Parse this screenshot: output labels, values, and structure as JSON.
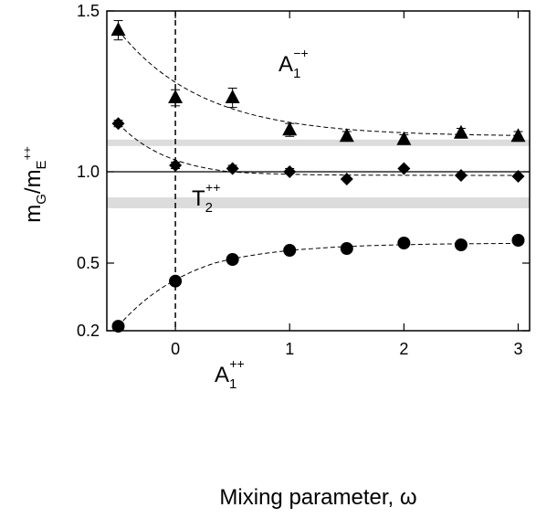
{
  "chart_data": {
    "type": "scatter",
    "title": "",
    "xlabel": "Mixing parameter, ω",
    "ylabel": {
      "base": "m",
      "sub1": "G",
      "slash": "/m",
      "sub2": "E",
      "sup2": "++"
    },
    "xlim": [
      -0.6,
      3.1
    ],
    "ylim": [
      0.2,
      1.5
    ],
    "x_ticks": [
      {
        "v": 0,
        "label": "0"
      },
      {
        "v": 1,
        "label": "1"
      },
      {
        "v": 2,
        "label": "2"
      },
      {
        "v": 3,
        "label": "3"
      }
    ],
    "y_ticks": [
      {
        "v": 0.2,
        "label": "0.2"
      },
      {
        "v": 0.5,
        "label": "0.5"
      },
      {
        "v": 1.0,
        "label": "1.0"
      },
      {
        "v": 1.5,
        "label": "1.5"
      }
    ],
    "reference_line_y": 1.0,
    "vertical_dashed_x": 0,
    "bands": [
      {
        "ymin": 1.08,
        "ymax": 1.1,
        "color": "#dcdcdc"
      },
      {
        "ymin": 0.8,
        "ymax": 0.86,
        "color": "#dcdcdc"
      }
    ],
    "series": [
      {
        "marker": "triangle",
        "label": {
          "base": "A",
          "sub": "1",
          "sup": "−+"
        },
        "x": [
          -0.5,
          0,
          0.5,
          1,
          1.5,
          2,
          2.5,
          3
        ],
        "y": [
          1.44,
          1.23,
          1.23,
          1.13,
          1.11,
          1.1,
          1.12,
          1.11
        ],
        "err": [
          0.03,
          0.025,
          0.03,
          0.02,
          0.015,
          0.015,
          0.015,
          0.015
        ],
        "fit": {
          "asymptote": 1.11,
          "amplitude": 0.33,
          "decay": 1.35,
          "x0": -0.5
        }
      },
      {
        "marker": "diamond",
        "label": {
          "base": "T",
          "sub": "2",
          "sup": "++"
        },
        "x": [
          -0.5,
          0,
          0.5,
          1,
          1.5,
          2,
          2.5,
          3
        ],
        "y": [
          1.15,
          1.02,
          1.01,
          1.0,
          0.96,
          1.01,
          0.98,
          0.975
        ],
        "err": [
          0.01,
          0.01,
          0.01,
          0.01,
          0.005,
          0.005,
          0.005,
          0.005
        ],
        "fit": {
          "asymptote": 0.98,
          "amplitude": 0.17,
          "decay": 2.2,
          "x0": -0.5
        }
      },
      {
        "marker": "circle",
        "label": {
          "base": "A",
          "sub": "1",
          "sup": "++"
        },
        "x": [
          -0.5,
          0,
          0.5,
          1,
          1.5,
          2,
          2.5,
          3
        ],
        "y": [
          0.22,
          0.42,
          0.52,
          0.57,
          0.58,
          0.61,
          0.6,
          0.625
        ],
        "err": [
          0.005,
          0.005,
          0.005,
          0.005,
          0.005,
          0.005,
          0.005,
          0.005
        ],
        "fit": {
          "asymptote": 0.61,
          "amplitude": -0.39,
          "decay": 1.5,
          "x0": -0.5
        }
      }
    ]
  }
}
